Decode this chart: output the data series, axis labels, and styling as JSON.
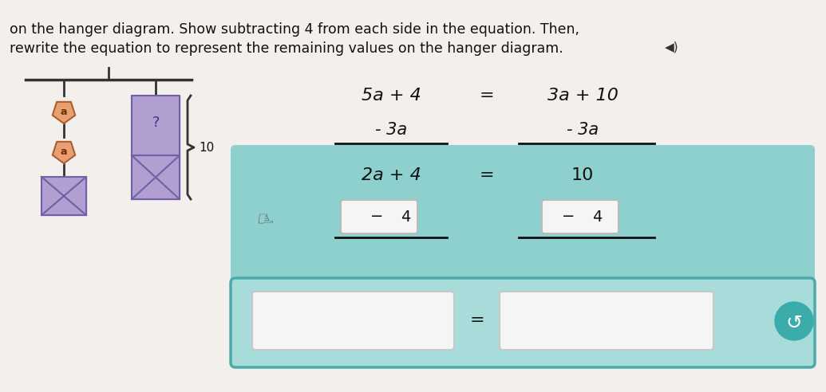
{
  "page_bg": "#f0eeec",
  "title_line1": "on the hanger diagram. Show subtracting 4 from each side in the equation. Then,",
  "title_line2": "rewrite the equation to represent the remaining values on the hanger diagram.",
  "eq_line1_left": "5a + 4",
  "eq_line1_eq": "=",
  "eq_line1_right": "3a + 10",
  "eq_line2_left": "- 3a",
  "eq_line2_right": "- 3a",
  "teal_bg": "#8dd0ce",
  "teal_result_left": "2a + 4",
  "teal_result_eq": "=",
  "teal_result_right": "10",
  "sub4_left": "4",
  "sub4_right": "4",
  "box_bg": "#8dd0ce",
  "box_border": "#5aacaa",
  "hanger_orange": "#e8a070",
  "hanger_purple": "#b09fd0",
  "hanger_purple_dark": "#8070b0",
  "hanger_line": "#333333",
  "speaker_symbol": "◀)",
  "cursor_symbol": "☞"
}
